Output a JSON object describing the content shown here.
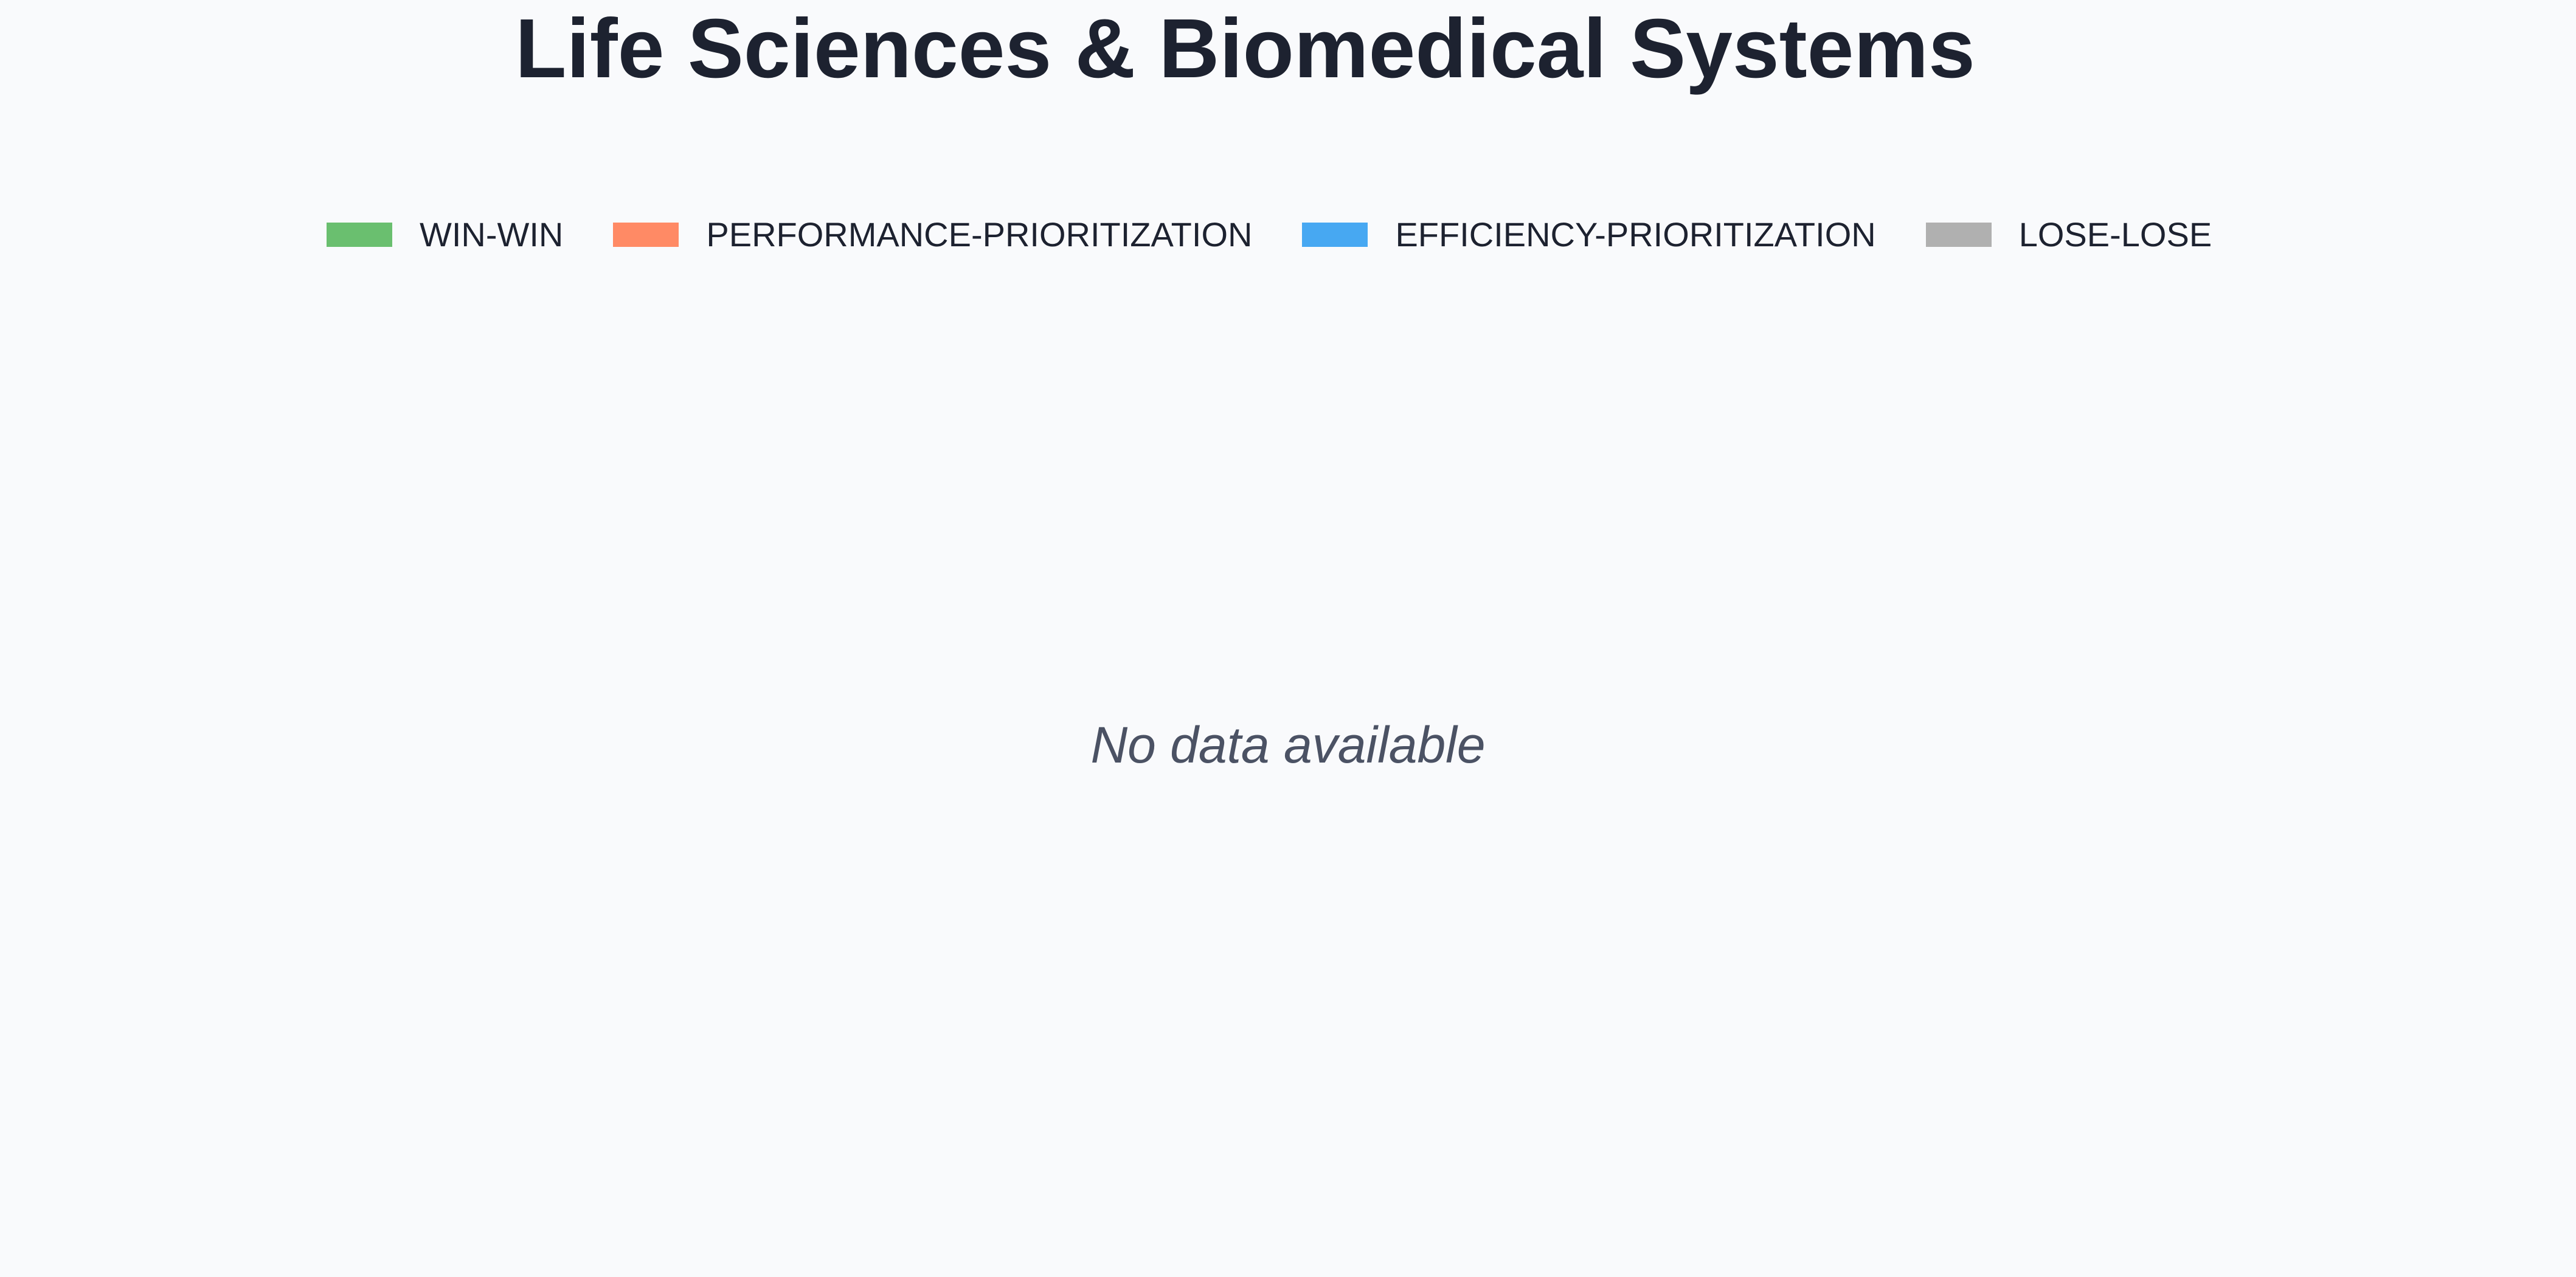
{
  "chart_data": {
    "type": "bar",
    "title": "Life Sciences & Biomedical Systems",
    "legend": [
      {
        "name": "WIN-WIN",
        "color": "#6abf6f"
      },
      {
        "name": "PERFORMANCE-PRIORITIZATION",
        "color": "#ff8a65"
      },
      {
        "name": "EFFICIENCY-PRIORITIZATION",
        "color": "#47a8f2"
      },
      {
        "name": "LOSE-LOSE",
        "color": "#b0b0b0"
      }
    ],
    "legend_placement": "top",
    "series": [],
    "empty_message": "No data available"
  }
}
